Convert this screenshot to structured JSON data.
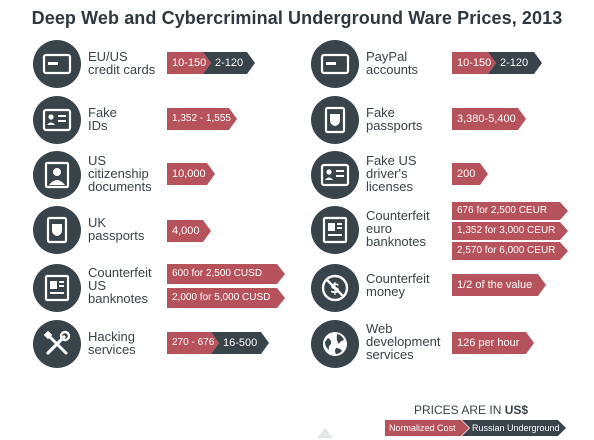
{
  "title": "Deep Web and Cybercriminal Underground Ware Prices, 2013",
  "items": [
    {
      "label": [
        "EU/US",
        "credit cards"
      ],
      "icon": "credit-card-icon",
      "normalized": "10-150",
      "russian": "2-120"
    },
    {
      "label": [
        "PayPal",
        "accounts"
      ],
      "icon": "credit-card-icon",
      "normalized": "10-150",
      "russian": "2-120"
    },
    {
      "label": [
        "Fake",
        "IDs"
      ],
      "icon": "id-card-icon",
      "normalized": "1,352 - 1,555"
    },
    {
      "label": [
        "Fake",
        "passports"
      ],
      "icon": "passport-icon",
      "normalized": "3,380-5,400"
    },
    {
      "label": [
        "US",
        "citizenship",
        "documents"
      ],
      "icon": "person-icon",
      "normalized": "10,000"
    },
    {
      "label": [
        "Fake US",
        "driver's",
        "licenses"
      ],
      "icon": "id-card-icon",
      "normalized": "200"
    },
    {
      "label": [
        "UK",
        "passports"
      ],
      "icon": "passport-icon",
      "normalized": "4,000"
    },
    {
      "label": [
        "Counterfeit",
        "euro",
        "banknotes"
      ],
      "icon": "banknote-icon",
      "normalized_list": [
        "676 for 2,500 CEUR",
        "1,352 for 3,000 CEUR",
        "2,570 for 6,000 CEUR"
      ]
    },
    {
      "label": [
        "Counterfeit",
        "US",
        "banknotes"
      ],
      "icon": "banknote-icon",
      "normalized_list": [
        "600 for 2,500 CUSD",
        "2,000 for 5,000 CUSD"
      ]
    },
    {
      "label": [
        "Counterfeit",
        "money"
      ],
      "icon": "no-dollar-icon",
      "normalized": "1/2 of the value"
    },
    {
      "label": [
        "Hacking",
        "services"
      ],
      "icon": "tools-icon",
      "normalized": "270 - 676",
      "russian": "16-500"
    },
    {
      "label": [
        "Web",
        "development",
        "services"
      ],
      "icon": "globe-icon",
      "normalized": "126 per hour"
    }
  ],
  "legend": {
    "title_prefix": "PRICES ARE IN ",
    "title_currency": "US$",
    "normalized_label": "Normalized Cost",
    "russian_label": "Russian Underground"
  },
  "colors": {
    "normalized": "#b5525b",
    "russian": "#38444a",
    "icon_bg": "#38444a"
  }
}
